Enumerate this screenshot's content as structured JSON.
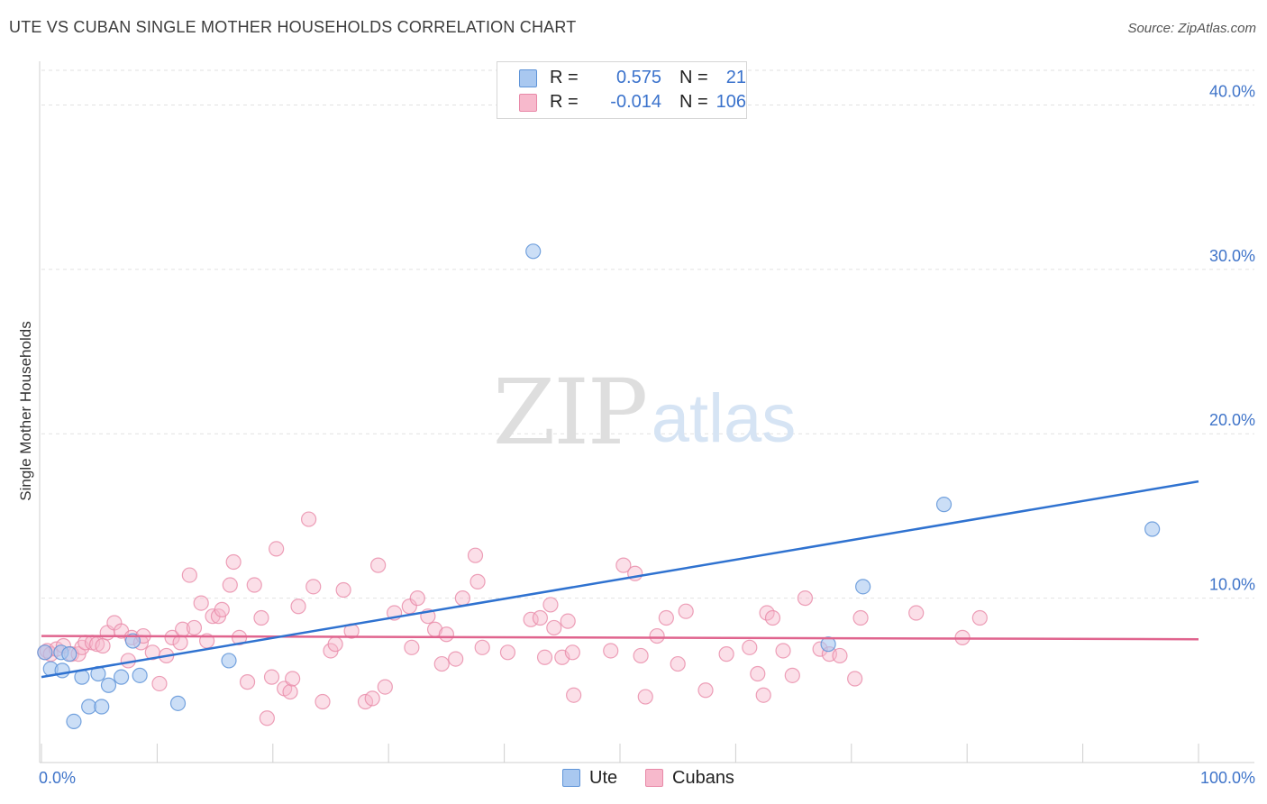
{
  "title": "UTE VS CUBAN SINGLE MOTHER HOUSEHOLDS CORRELATION CHART",
  "source": "Source: ZipAtlas.com",
  "watermark": {
    "zip": "ZIP",
    "atlas": "atlas"
  },
  "legend": {
    "ute": {
      "r_label": "R =",
      "r_value": "0.575",
      "n_label": "N =",
      "n_value": "21"
    },
    "cubans": {
      "r_label": "R =",
      "r_value": "-0.014",
      "n_label": "N =",
      "n_value": "106"
    }
  },
  "colors": {
    "ute_fill": "#a9c8f0",
    "ute_stroke": "#5f94d8",
    "ute_line": "#2f72d0",
    "cuban_fill": "#f7b9cc",
    "cuban_stroke": "#e889a8",
    "cuban_line": "#e0648e",
    "axis_text": "#3f74c9",
    "grid": "#e2e2e2"
  },
  "chart_data": {
    "type": "scatter",
    "title": "UTE VS CUBAN SINGLE MOTHER HOUSEHOLDS CORRELATION CHART",
    "xlabel": "",
    "ylabel": "Single Mother Households",
    "xlim": [
      0,
      100
    ],
    "ylim": [
      0,
      42
    ],
    "x_tick_labels": [
      "0.0%",
      "100.0%"
    ],
    "y_ticks": [
      10,
      20,
      30,
      40
    ],
    "y_tick_labels": [
      "10.0%",
      "20.0%",
      "30.0%",
      "40.0%"
    ],
    "grid": true,
    "legend_position": "bottom-center",
    "series": [
      {
        "name": "Ute",
        "points": [
          [
            0.3,
            6.7
          ],
          [
            0.8,
            5.7
          ],
          [
            1.7,
            6.7
          ],
          [
            1.8,
            5.6
          ],
          [
            2.4,
            6.6
          ],
          [
            2.8,
            2.5
          ],
          [
            3.5,
            5.2
          ],
          [
            4.1,
            3.4
          ],
          [
            4.9,
            5.4
          ],
          [
            5.2,
            3.4
          ],
          [
            5.8,
            4.7
          ],
          [
            6.9,
            5.2
          ],
          [
            8.5,
            5.3
          ],
          [
            7.9,
            7.4
          ],
          [
            11.8,
            3.6
          ],
          [
            16.2,
            6.2
          ],
          [
            42.5,
            31.1
          ],
          [
            68.0,
            7.2
          ],
          [
            71.0,
            10.7
          ],
          [
            78.0,
            15.7
          ],
          [
            96.0,
            14.2
          ]
        ],
        "trend": {
          "x": [
            0,
            100
          ],
          "y": [
            5.2,
            17.1
          ]
        }
      },
      {
        "name": "Cubans",
        "points": [
          [
            0.3,
            6.7
          ],
          [
            0.5,
            6.8
          ],
          [
            0.8,
            6.6
          ],
          [
            1.3,
            6.9
          ],
          [
            1.9,
            7.1
          ],
          [
            2.6,
            6.6
          ],
          [
            3.2,
            6.6
          ],
          [
            3.5,
            7.0
          ],
          [
            3.8,
            7.3
          ],
          [
            4.4,
            7.3
          ],
          [
            4.8,
            7.2
          ],
          [
            5.3,
            7.1
          ],
          [
            5.7,
            7.9
          ],
          [
            6.3,
            8.5
          ],
          [
            6.9,
            8.0
          ],
          [
            7.5,
            6.2
          ],
          [
            7.8,
            7.6
          ],
          [
            8.6,
            7.3
          ],
          [
            8.8,
            7.7
          ],
          [
            9.6,
            6.7
          ],
          [
            10.2,
            4.8
          ],
          [
            10.8,
            6.5
          ],
          [
            11.3,
            7.6
          ],
          [
            12.0,
            7.3
          ],
          [
            12.2,
            8.1
          ],
          [
            12.8,
            11.4
          ],
          [
            13.2,
            8.2
          ],
          [
            13.8,
            9.7
          ],
          [
            14.3,
            7.4
          ],
          [
            14.8,
            8.9
          ],
          [
            15.3,
            8.9
          ],
          [
            15.6,
            9.3
          ],
          [
            16.3,
            10.8
          ],
          [
            16.6,
            12.2
          ],
          [
            17.1,
            7.6
          ],
          [
            17.8,
            4.9
          ],
          [
            18.4,
            10.8
          ],
          [
            19.0,
            8.8
          ],
          [
            19.5,
            2.7
          ],
          [
            19.9,
            5.2
          ],
          [
            20.3,
            13.0
          ],
          [
            21.0,
            4.5
          ],
          [
            21.5,
            4.3
          ],
          [
            21.7,
            5.1
          ],
          [
            22.2,
            9.5
          ],
          [
            23.1,
            14.8
          ],
          [
            23.5,
            10.7
          ],
          [
            24.3,
            3.7
          ],
          [
            25.0,
            6.8
          ],
          [
            25.4,
            7.2
          ],
          [
            26.1,
            10.5
          ],
          [
            26.8,
            8.0
          ],
          [
            28.0,
            3.7
          ],
          [
            28.6,
            3.9
          ],
          [
            29.1,
            12.0
          ],
          [
            29.7,
            4.6
          ],
          [
            30.5,
            9.1
          ],
          [
            31.8,
            9.5
          ],
          [
            32.0,
            7.0
          ],
          [
            32.5,
            10.0
          ],
          [
            33.4,
            8.9
          ],
          [
            34.0,
            8.1
          ],
          [
            34.6,
            6.0
          ],
          [
            35.0,
            7.8
          ],
          [
            35.8,
            6.3
          ],
          [
            36.4,
            10.0
          ],
          [
            37.5,
            12.6
          ],
          [
            37.7,
            11.0
          ],
          [
            38.1,
            7.0
          ],
          [
            40.3,
            6.7
          ],
          [
            42.3,
            8.7
          ],
          [
            43.1,
            8.8
          ],
          [
            43.5,
            6.4
          ],
          [
            44.0,
            9.6
          ],
          [
            44.3,
            8.2
          ],
          [
            45.0,
            6.4
          ],
          [
            45.5,
            8.6
          ],
          [
            45.9,
            6.7
          ],
          [
            46.0,
            4.1
          ],
          [
            49.2,
            6.8
          ],
          [
            50.3,
            12.0
          ],
          [
            51.3,
            11.5
          ],
          [
            51.8,
            6.5
          ],
          [
            52.2,
            4.0
          ],
          [
            53.2,
            7.7
          ],
          [
            54.0,
            8.8
          ],
          [
            55.0,
            6.0
          ],
          [
            55.7,
            9.2
          ],
          [
            57.4,
            4.4
          ],
          [
            59.2,
            6.6
          ],
          [
            61.2,
            7.0
          ],
          [
            61.9,
            5.4
          ],
          [
            62.4,
            4.1
          ],
          [
            62.7,
            9.1
          ],
          [
            63.2,
            8.8
          ],
          [
            64.1,
            6.8
          ],
          [
            64.9,
            5.3
          ],
          [
            66.0,
            10.0
          ],
          [
            67.3,
            6.9
          ],
          [
            68.1,
            6.6
          ],
          [
            69.0,
            6.5
          ],
          [
            70.3,
            5.1
          ],
          [
            70.8,
            8.8
          ],
          [
            75.6,
            9.1
          ],
          [
            79.6,
            7.6
          ],
          [
            81.1,
            8.8
          ]
        ],
        "trend": {
          "x": [
            0,
            100
          ],
          "y": [
            7.7,
            7.5
          ]
        }
      }
    ]
  },
  "bottom_legend": {
    "ute_label": "Ute",
    "cubans_label": "Cubans"
  }
}
